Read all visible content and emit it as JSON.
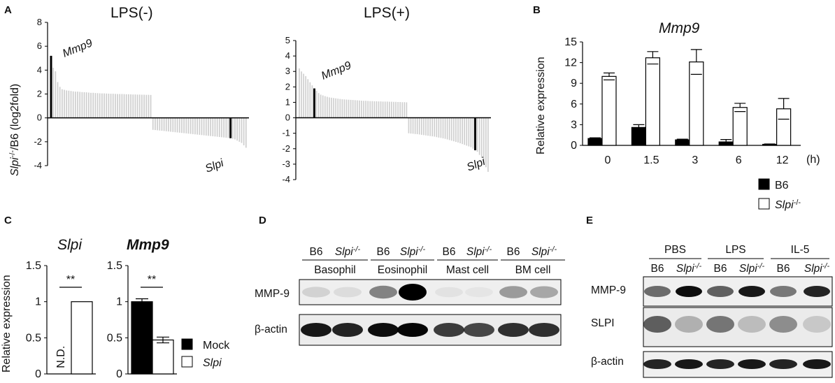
{
  "panels": {
    "a": "A",
    "b": "B",
    "c": "C",
    "d": "D",
    "e": "E"
  },
  "panel_a": {
    "ylabel_gene": "Slpi",
    "ylabel_sup": "-/-",
    "ylabel_rest": "/B6  (log2fold)",
    "ann_mmp9": "Mmp9",
    "ann_slpi": "Slpi"
  },
  "panel_d": {
    "genotypes": [
      "B6",
      "Slpi",
      "B6",
      "Slpi",
      "B6",
      "Slpi",
      "B6",
      "Slpi"
    ],
    "ko_sup": "-/-",
    "cells": [
      "Basophil",
      "Eosinophil",
      "Mast cell",
      "BM cell"
    ],
    "rows": [
      "MMP-9",
      "β-actin"
    ]
  },
  "panel_e": {
    "treatments": [
      "PBS",
      "LPS",
      "IL-5"
    ],
    "genotypes": [
      "B6",
      "Slpi",
      "B6",
      "Slpi",
      "B6",
      "Slpi"
    ],
    "ko_sup": "-/-",
    "rows": [
      "MMP-9",
      "SLPI",
      "β-actin"
    ]
  },
  "colors": {
    "bar_grey": "#d4d4d4",
    "black": "#000000",
    "white": "#ffffff"
  },
  "chart_data": [
    {
      "id": "A-left",
      "type": "bar",
      "title": "LPS(-)",
      "ylim": [
        -4,
        8
      ],
      "yticks": [
        -4,
        -2,
        0,
        2,
        4,
        6,
        8
      ],
      "highlight": [
        {
          "name": "Mmp9",
          "value": 5.2
        },
        {
          "name": "Slpi",
          "value": -1.7
        }
      ],
      "values": [
        5.2,
        4.2,
        3.9,
        3.0,
        2.6,
        2.4,
        2.35,
        2.3,
        2.28,
        2.25,
        2.22,
        2.2,
        2.2,
        2.18,
        2.16,
        2.15,
        2.14,
        2.12,
        2.1,
        2.1,
        2.08,
        2.07,
        2.06,
        2.05,
        2.05,
        2.04,
        2.03,
        2.02,
        2.02,
        2.01,
        2.0,
        2.0,
        2.0,
        1.99,
        1.98,
        1.98,
        1.97,
        1.96,
        1.96,
        1.95,
        1.95,
        1.94,
        1.94,
        1.93,
        1.93,
        1.92,
        -1.0,
        -1.02,
        -1.04,
        -1.06,
        -1.08,
        -1.1,
        -1.12,
        -1.14,
        -1.16,
        -1.18,
        -1.2,
        -1.22,
        -1.24,
        -1.26,
        -1.28,
        -1.3,
        -1.32,
        -1.34,
        -1.36,
        -1.38,
        -1.4,
        -1.42,
        -1.44,
        -1.46,
        -1.48,
        -1.5,
        -1.52,
        -1.54,
        -1.56,
        -1.58,
        -1.6,
        -1.62,
        -1.64,
        -1.66,
        -1.68,
        -1.7,
        -1.75,
        -1.8,
        -1.9,
        -2.0,
        -2.1,
        -2.3,
        -2.5
      ]
    },
    {
      "id": "A-right",
      "type": "bar",
      "title": "LPS(+)",
      "ylim": [
        -4,
        5
      ],
      "yticks": [
        -4,
        -3,
        -2,
        -1,
        0,
        1,
        2,
        3,
        4,
        5
      ],
      "highlight": [
        {
          "name": "Mmp9",
          "value": 1.9
        },
        {
          "name": "Slpi",
          "value": -2.1
        }
      ],
      "values": [
        3.2,
        3.0,
        2.85,
        2.7,
        2.5,
        2.3,
        2.1,
        1.9,
        1.75,
        1.6,
        1.5,
        1.45,
        1.4,
        1.36,
        1.32,
        1.3,
        1.28,
        1.26,
        1.24,
        1.22,
        1.2,
        1.19,
        1.18,
        1.17,
        1.16,
        1.15,
        1.14,
        1.13,
        1.12,
        1.11,
        1.1,
        1.1,
        1.09,
        1.08,
        1.08,
        1.07,
        1.07,
        1.06,
        1.06,
        1.05,
        1.05,
        1.05,
        1.04,
        1.04,
        1.03,
        1.03,
        1.02,
        1.02,
        1.01,
        1.01,
        1.0,
        -1.0,
        -1.02,
        -1.03,
        -1.05,
        -1.06,
        -1.08,
        -1.1,
        -1.12,
        -1.14,
        -1.16,
        -1.18,
        -1.2,
        -1.22,
        -1.25,
        -1.28,
        -1.3,
        -1.33,
        -1.36,
        -1.4,
        -1.44,
        -1.48,
        -1.52,
        -1.56,
        -1.6,
        -1.65,
        -1.7,
        -1.75,
        -1.8,
        -1.85,
        -1.9,
        -2.0,
        -2.1,
        -2.2,
        -2.4,
        -2.6,
        -2.9,
        -3.2,
        -3.5
      ]
    },
    {
      "id": "B",
      "type": "bar",
      "title": "Mmp9",
      "ylabel": "Relative expression",
      "ylim": [
        0,
        15
      ],
      "yticks": [
        0,
        3,
        6,
        9,
        12,
        15
      ],
      "categories": [
        "0",
        "1.5",
        "3",
        "6",
        "12"
      ],
      "x_unit": "(h)",
      "series": [
        {
          "name": "B6",
          "values": [
            1.0,
            2.6,
            0.8,
            0.5,
            0.15
          ],
          "errors": [
            0.1,
            0.4,
            0.1,
            0.35,
            0.05
          ]
        },
        {
          "name": "Slpi",
          "name_sup": "-/-",
          "values": [
            10.0,
            12.7,
            12.1,
            5.5,
            5.3
          ],
          "errors": [
            0.5,
            0.9,
            1.8,
            0.6,
            1.5
          ]
        }
      ],
      "legend": "bottom-right"
    },
    {
      "id": "C-Slpi",
      "type": "bar",
      "title": "Slpi",
      "ylabel": "Relative expression",
      "ylim": [
        0,
        1.5
      ],
      "yticks": [
        0,
        0.5,
        1,
        1.5
      ],
      "series": [
        {
          "name": "Mock",
          "values": [
            null
          ],
          "note": "N.D."
        },
        {
          "name": "Slpi",
          "values": [
            1.0
          ]
        }
      ],
      "significance": "**"
    },
    {
      "id": "C-Mmp9",
      "type": "bar",
      "title": "Mmp9",
      "ylim": [
        0,
        1.5
      ],
      "yticks": [
        0,
        0.5,
        1,
        1.5
      ],
      "series": [
        {
          "name": "Mock",
          "values": [
            1.0
          ],
          "errors": [
            0.04
          ]
        },
        {
          "name": "Slpi",
          "values": [
            0.47
          ],
          "errors": [
            0.04
          ]
        }
      ],
      "significance": "**",
      "legend": "right"
    }
  ]
}
